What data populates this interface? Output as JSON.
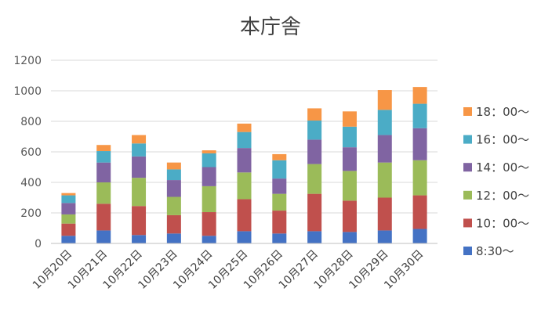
{
  "chart_data": {
    "type": "bar",
    "stacked": true,
    "title": "本庁舎",
    "xlabel": "",
    "ylabel": "",
    "ylim": [
      0,
      1200
    ],
    "yticks": [
      0,
      200,
      400,
      600,
      800,
      1000,
      1200
    ],
    "grid": true,
    "legend_position": "right",
    "categories": [
      "10月20日",
      "10月21日",
      "10月22日",
      "10月23日",
      "10月24日",
      "10月25日",
      "10月26日",
      "10月27日",
      "10月28日",
      "10月29日",
      "10月30日"
    ],
    "series": [
      {
        "name": "8:30～",
        "color": "#4472c4",
        "values": [
          50,
          85,
          55,
          65,
          50,
          80,
          65,
          80,
          75,
          85,
          95
        ]
      },
      {
        "name": "10：00～",
        "color": "#c0504d",
        "values": [
          80,
          175,
          190,
          120,
          155,
          210,
          150,
          245,
          205,
          215,
          220
        ]
      },
      {
        "name": "12：00～",
        "color": "#9bbb59",
        "values": [
          60,
          140,
          185,
          120,
          170,
          175,
          110,
          195,
          195,
          230,
          230
        ]
      },
      {
        "name": "14：00～",
        "color": "#8064a2",
        "values": [
          75,
          130,
          140,
          110,
          125,
          160,
          100,
          160,
          155,
          180,
          210
        ]
      },
      {
        "name": "16：00～",
        "color": "#4bacc6",
        "values": [
          50,
          75,
          85,
          70,
          90,
          105,
          120,
          125,
          135,
          165,
          160
        ]
      },
      {
        "name": "18：00～",
        "color": "#f79646",
        "values": [
          15,
          40,
          55,
          45,
          20,
          55,
          40,
          80,
          100,
          130,
          110
        ]
      }
    ]
  }
}
